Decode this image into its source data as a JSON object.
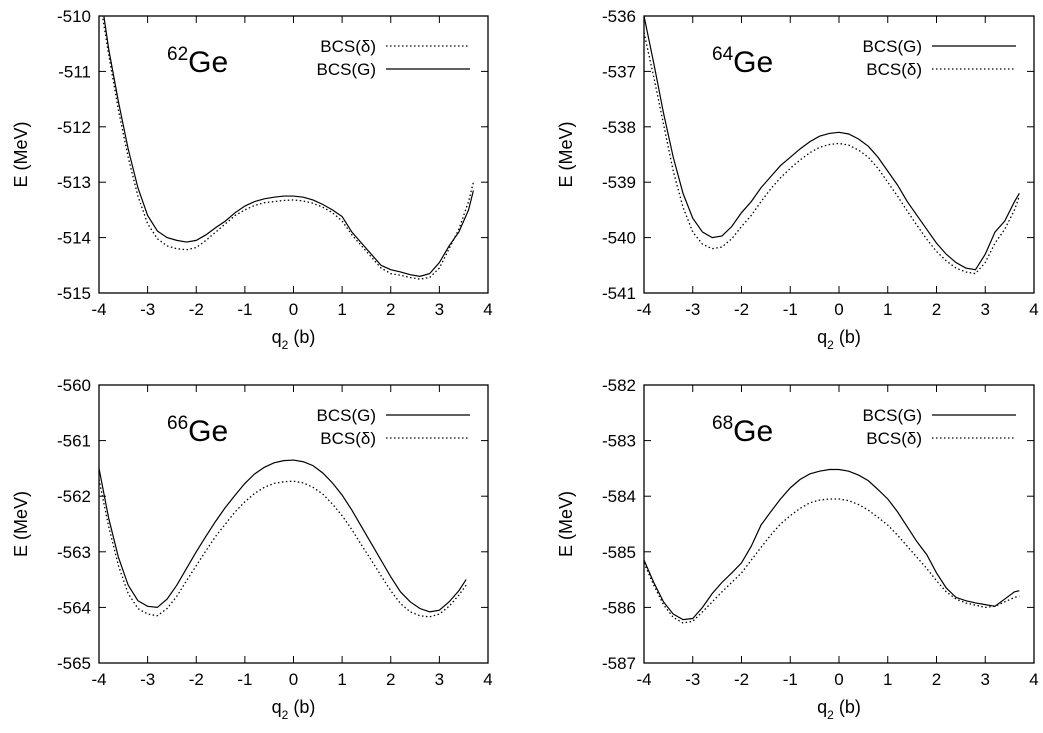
{
  "chart_data": [
    {
      "type": "line",
      "nucleus": {
        "mass": "62",
        "element": "Ge"
      },
      "xlabel": {
        "main": "q",
        "sub": "2",
        "unit": " (b)"
      },
      "ylabel": "E (MeV)",
      "xlim": [
        -4,
        4
      ],
      "ylim": [
        -515,
        -510
      ],
      "xticks": [
        "-4",
        "-3",
        "-2",
        "-1",
        "0",
        "1",
        "2",
        "3",
        "4"
      ],
      "yticks": [
        "-515",
        "-514",
        "-513",
        "-512",
        "-511",
        "-510"
      ],
      "grid": false,
      "legend_position": "top-right",
      "series": [
        {
          "name": "BCS(δ)",
          "style": "dotted",
          "x": [
            -3.92,
            -3.8,
            -3.6,
            -3.4,
            -3.2,
            -3.0,
            -2.8,
            -2.6,
            -2.4,
            -2.2,
            -2.0,
            -1.8,
            -1.6,
            -1.4,
            -1.2,
            -1.0,
            -0.8,
            -0.6,
            -0.4,
            -0.2,
            0.0,
            0.2,
            0.4,
            0.6,
            0.8,
            1.0,
            1.2,
            1.4,
            1.6,
            1.8,
            2.0,
            2.2,
            2.4,
            2.6,
            2.8,
            3.0,
            3.2,
            3.4,
            3.6,
            3.7
          ],
          "y": [
            -510.05,
            -510.7,
            -511.7,
            -512.55,
            -513.25,
            -513.75,
            -514.02,
            -514.15,
            -514.2,
            -514.22,
            -514.18,
            -514.05,
            -513.9,
            -513.75,
            -513.6,
            -513.5,
            -513.42,
            -513.37,
            -513.35,
            -513.33,
            -513.32,
            -513.34,
            -513.38,
            -513.45,
            -513.55,
            -513.7,
            -513.95,
            -514.15,
            -514.35,
            -514.55,
            -514.65,
            -514.68,
            -514.72,
            -514.75,
            -514.72,
            -514.55,
            -514.2,
            -513.85,
            -513.35,
            -513.0
          ]
        },
        {
          "name": "BCS(G)",
          "style": "solid",
          "x": [
            -3.9,
            -3.8,
            -3.6,
            -3.4,
            -3.2,
            -3.0,
            -2.8,
            -2.6,
            -2.4,
            -2.2,
            -2.0,
            -1.8,
            -1.6,
            -1.4,
            -1.2,
            -1.0,
            -0.8,
            -0.6,
            -0.4,
            -0.2,
            0.0,
            0.2,
            0.4,
            0.6,
            0.8,
            1.0,
            1.2,
            1.4,
            1.6,
            1.8,
            2.0,
            2.2,
            2.4,
            2.6,
            2.8,
            3.0,
            3.2,
            3.4,
            3.6,
            3.7
          ],
          "y": [
            -510.0,
            -510.6,
            -511.55,
            -512.4,
            -513.1,
            -513.6,
            -513.88,
            -514.0,
            -514.05,
            -514.08,
            -514.05,
            -513.95,
            -513.82,
            -513.7,
            -513.55,
            -513.43,
            -513.35,
            -513.3,
            -513.27,
            -513.25,
            -513.25,
            -513.27,
            -513.32,
            -513.4,
            -513.5,
            -513.62,
            -513.9,
            -514.1,
            -514.3,
            -514.5,
            -514.58,
            -514.62,
            -514.67,
            -514.7,
            -514.65,
            -514.45,
            -514.15,
            -513.9,
            -513.5,
            -513.15
          ]
        }
      ]
    },
    {
      "type": "line",
      "nucleus": {
        "mass": "64",
        "element": "Ge"
      },
      "xlabel": {
        "main": "q",
        "sub": "2",
        "unit": " (b)"
      },
      "ylabel": "E (MeV)",
      "xlim": [
        -4,
        4
      ],
      "ylim": [
        -541,
        -536
      ],
      "xticks": [
        "-4",
        "-3",
        "-2",
        "-1",
        "0",
        "1",
        "2",
        "3",
        "4"
      ],
      "yticks": [
        "-541",
        "-540",
        "-539",
        "-538",
        "-537",
        "-536"
      ],
      "grid": false,
      "legend_position": "top-right",
      "series": [
        {
          "name": "BCS(G)",
          "style": "solid",
          "x": [
            -4.0,
            -3.8,
            -3.6,
            -3.4,
            -3.2,
            -3.0,
            -2.8,
            -2.6,
            -2.4,
            -2.2,
            -2.0,
            -1.8,
            -1.6,
            -1.4,
            -1.2,
            -1.0,
            -0.8,
            -0.6,
            -0.4,
            -0.2,
            0.0,
            0.2,
            0.4,
            0.6,
            0.8,
            1.0,
            1.2,
            1.4,
            1.6,
            1.8,
            2.0,
            2.2,
            2.4,
            2.6,
            2.8,
            3.0,
            3.2,
            3.4,
            3.6,
            3.7
          ],
          "y": [
            -536.0,
            -536.85,
            -537.75,
            -538.55,
            -539.2,
            -539.65,
            -539.9,
            -540.0,
            -539.97,
            -539.8,
            -539.55,
            -539.35,
            -539.1,
            -538.9,
            -538.7,
            -538.55,
            -538.4,
            -538.27,
            -538.17,
            -538.12,
            -538.1,
            -538.13,
            -538.22,
            -538.35,
            -538.55,
            -538.8,
            -539.05,
            -539.35,
            -539.6,
            -539.85,
            -540.1,
            -540.3,
            -540.45,
            -540.55,
            -540.58,
            -540.3,
            -539.9,
            -539.7,
            -539.35,
            -539.2
          ]
        },
        {
          "name": "BCS(δ)",
          "style": "dotted",
          "x": [
            -4.0,
            -3.8,
            -3.6,
            -3.4,
            -3.2,
            -3.0,
            -2.8,
            -2.6,
            -2.4,
            -2.2,
            -2.0,
            -1.8,
            -1.6,
            -1.4,
            -1.2,
            -1.0,
            -0.8,
            -0.6,
            -0.4,
            -0.2,
            0.0,
            0.2,
            0.4,
            0.6,
            0.8,
            1.0,
            1.2,
            1.4,
            1.6,
            1.8,
            2.0,
            2.2,
            2.4,
            2.6,
            2.8,
            3.0,
            3.2,
            3.4,
            3.6,
            3.7
          ],
          "y": [
            -536.3,
            -537.1,
            -537.95,
            -538.8,
            -539.45,
            -539.9,
            -540.12,
            -540.2,
            -540.17,
            -540.02,
            -539.8,
            -539.6,
            -539.35,
            -539.12,
            -538.92,
            -538.75,
            -538.6,
            -538.47,
            -538.37,
            -538.32,
            -538.3,
            -538.33,
            -538.42,
            -538.55,
            -538.75,
            -539.0,
            -539.25,
            -539.52,
            -539.78,
            -540.03,
            -540.25,
            -540.42,
            -540.55,
            -540.62,
            -540.65,
            -540.45,
            -540.1,
            -539.85,
            -539.5,
            -539.25
          ]
        }
      ]
    },
    {
      "type": "line",
      "nucleus": {
        "mass": "66",
        "element": "Ge"
      },
      "xlabel": {
        "main": "q",
        "sub": "2",
        "unit": " (b)"
      },
      "ylabel": "E (MeV)",
      "xlim": [
        -4,
        4
      ],
      "ylim": [
        -565,
        -560
      ],
      "xticks": [
        "-4",
        "-3",
        "-2",
        "-1",
        "0",
        "1",
        "2",
        "3",
        "4"
      ],
      "yticks": [
        "-565",
        "-564",
        "-563",
        "-562",
        "-561",
        "-560"
      ],
      "grid": false,
      "legend_position": "top-right",
      "series": [
        {
          "name": "BCS(G)",
          "style": "solid",
          "x": [
            -4.0,
            -3.8,
            -3.6,
            -3.4,
            -3.2,
            -3.0,
            -2.8,
            -2.6,
            -2.4,
            -2.2,
            -2.0,
            -1.8,
            -1.6,
            -1.4,
            -1.2,
            -1.0,
            -0.8,
            -0.6,
            -0.4,
            -0.2,
            0.0,
            0.2,
            0.4,
            0.6,
            0.8,
            1.0,
            1.2,
            1.4,
            1.6,
            1.8,
            2.0,
            2.2,
            2.4,
            2.6,
            2.8,
            3.0,
            3.2,
            3.4,
            3.55
          ],
          "y": [
            -561.5,
            -562.4,
            -563.1,
            -563.6,
            -563.88,
            -563.98,
            -564.0,
            -563.85,
            -563.6,
            -563.3,
            -563.0,
            -562.72,
            -562.45,
            -562.2,
            -561.98,
            -561.77,
            -561.6,
            -561.48,
            -561.4,
            -561.36,
            -561.35,
            -561.38,
            -561.45,
            -561.58,
            -561.76,
            -561.98,
            -562.25,
            -562.55,
            -562.85,
            -563.15,
            -563.45,
            -563.72,
            -563.9,
            -564.02,
            -564.08,
            -564.05,
            -563.9,
            -563.7,
            -563.5
          ]
        },
        {
          "name": "BCS(δ)",
          "style": "dotted",
          "x": [
            -4.0,
            -3.8,
            -3.6,
            -3.4,
            -3.2,
            -3.0,
            -2.8,
            -2.6,
            -2.4,
            -2.2,
            -2.0,
            -1.8,
            -1.6,
            -1.4,
            -1.2,
            -1.0,
            -0.8,
            -0.6,
            -0.4,
            -0.2,
            0.0,
            0.2,
            0.4,
            0.6,
            0.8,
            1.0,
            1.2,
            1.4,
            1.6,
            1.8,
            2.0,
            2.2,
            2.4,
            2.6,
            2.8,
            3.0,
            3.2,
            3.4,
            3.55
          ],
          "y": [
            -561.7,
            -562.55,
            -563.25,
            -563.75,
            -564.02,
            -564.12,
            -564.15,
            -564.02,
            -563.8,
            -563.52,
            -563.25,
            -562.98,
            -562.72,
            -562.5,
            -562.28,
            -562.1,
            -561.95,
            -561.84,
            -561.77,
            -561.74,
            -561.73,
            -561.76,
            -561.84,
            -561.96,
            -562.14,
            -562.35,
            -562.6,
            -562.88,
            -563.15,
            -563.43,
            -563.7,
            -563.93,
            -564.08,
            -564.15,
            -564.17,
            -564.12,
            -563.98,
            -563.78,
            -563.6
          ]
        }
      ]
    },
    {
      "type": "line",
      "nucleus": {
        "mass": "68",
        "element": "Ge"
      },
      "xlabel": {
        "main": "q",
        "sub": "2",
        "unit": " (b)"
      },
      "ylabel": "E (MeV)",
      "xlim": [
        -4,
        4
      ],
      "ylim": [
        -587,
        -582
      ],
      "xticks": [
        "-4",
        "-3",
        "-2",
        "-1",
        "0",
        "1",
        "2",
        "3",
        "4"
      ],
      "yticks": [
        "-587",
        "-586",
        "-585",
        "-584",
        "-583",
        "-582"
      ],
      "grid": false,
      "legend_position": "top-right",
      "series": [
        {
          "name": "BCS(G)",
          "style": "solid",
          "x": [
            -4.0,
            -3.8,
            -3.6,
            -3.4,
            -3.2,
            -3.0,
            -2.8,
            -2.6,
            -2.4,
            -2.2,
            -2.0,
            -1.8,
            -1.6,
            -1.4,
            -1.2,
            -1.0,
            -0.8,
            -0.6,
            -0.4,
            -0.2,
            0.0,
            0.2,
            0.4,
            0.6,
            0.8,
            1.0,
            1.2,
            1.4,
            1.6,
            1.8,
            2.0,
            2.2,
            2.4,
            2.6,
            2.8,
            3.0,
            3.2,
            3.4,
            3.6,
            3.7
          ],
          "y": [
            -585.15,
            -585.55,
            -585.9,
            -586.12,
            -586.22,
            -586.2,
            -586.0,
            -585.75,
            -585.55,
            -585.38,
            -585.2,
            -584.9,
            -584.52,
            -584.28,
            -584.05,
            -583.85,
            -583.7,
            -583.6,
            -583.55,
            -583.52,
            -583.52,
            -583.55,
            -583.62,
            -583.72,
            -583.88,
            -584.05,
            -584.28,
            -584.55,
            -584.82,
            -585.05,
            -585.38,
            -585.65,
            -585.82,
            -585.88,
            -585.92,
            -585.95,
            -585.98,
            -585.85,
            -585.72,
            -585.7
          ]
        },
        {
          "name": "BCS(δ)",
          "style": "dotted",
          "x": [
            -4.0,
            -3.8,
            -3.6,
            -3.4,
            -3.2,
            -3.0,
            -2.8,
            -2.6,
            -2.4,
            -2.2,
            -2.0,
            -1.8,
            -1.6,
            -1.4,
            -1.2,
            -1.0,
            -0.8,
            -0.6,
            -0.4,
            -0.2,
            0.0,
            0.2,
            0.4,
            0.6,
            0.8,
            1.0,
            1.2,
            1.4,
            1.6,
            1.8,
            2.0,
            2.2,
            2.4,
            2.6,
            2.8,
            3.0,
            3.2,
            3.4,
            3.6,
            3.7
          ],
          "y": [
            -585.2,
            -585.6,
            -585.95,
            -586.18,
            -586.28,
            -586.25,
            -586.08,
            -585.9,
            -585.72,
            -585.55,
            -585.38,
            -585.15,
            -584.92,
            -584.7,
            -584.5,
            -584.35,
            -584.22,
            -584.12,
            -584.07,
            -584.05,
            -584.05,
            -584.08,
            -584.15,
            -584.25,
            -584.38,
            -584.52,
            -584.7,
            -584.9,
            -585.1,
            -585.3,
            -585.52,
            -585.72,
            -585.85,
            -585.92,
            -585.96,
            -586.0,
            -585.98,
            -585.9,
            -585.82,
            -585.8
          ]
        }
      ]
    }
  ]
}
